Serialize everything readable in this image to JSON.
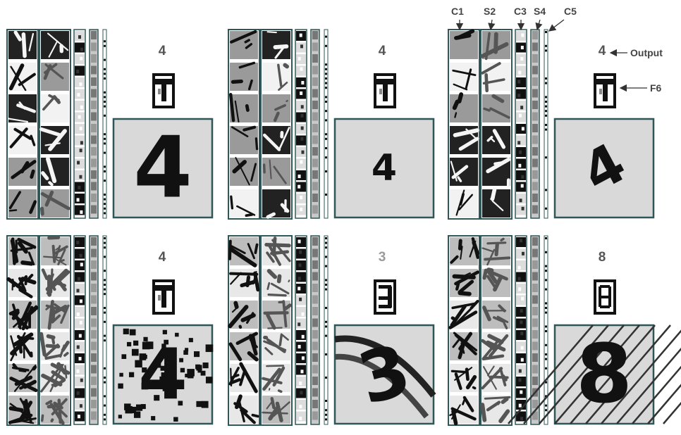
{
  "layer_labels": {
    "c1": "C1",
    "s2": "S2",
    "c3": "C3",
    "s4": "S4",
    "c5": "C5",
    "output": "Output",
    "f6": "F6"
  },
  "panels": [
    {
      "output": "4",
      "output_color": "#555555",
      "digit": "4",
      "input_style": "large-clean",
      "f6_pattern": "four"
    },
    {
      "output": "4",
      "output_color": "#555555",
      "digit": "4",
      "input_style": "small-clean",
      "f6_pattern": "four"
    },
    {
      "output": "4",
      "output_color": "#555555",
      "digit": "4",
      "input_style": "rotated",
      "f6_pattern": "four"
    },
    {
      "output": "4",
      "output_color": "#555555",
      "digit": "4",
      "input_style": "salt-pepper-noise",
      "f6_pattern": "four"
    },
    {
      "output": "3",
      "output_color": "#9a9a9a",
      "digit": "3",
      "input_style": "overlapping-strokes",
      "f6_pattern": "three"
    },
    {
      "output": "8",
      "output_color": "#555555",
      "digit": "8",
      "input_style": "diagonal-lines",
      "f6_pattern": "eight"
    }
  ],
  "colors": {
    "frame": "#2f5757",
    "input_bg": "#d9d9d9",
    "map_dark": "#111111",
    "map_mid": "#8a8a8a",
    "map_light": "#f0f0f0",
    "text": "#444444"
  }
}
